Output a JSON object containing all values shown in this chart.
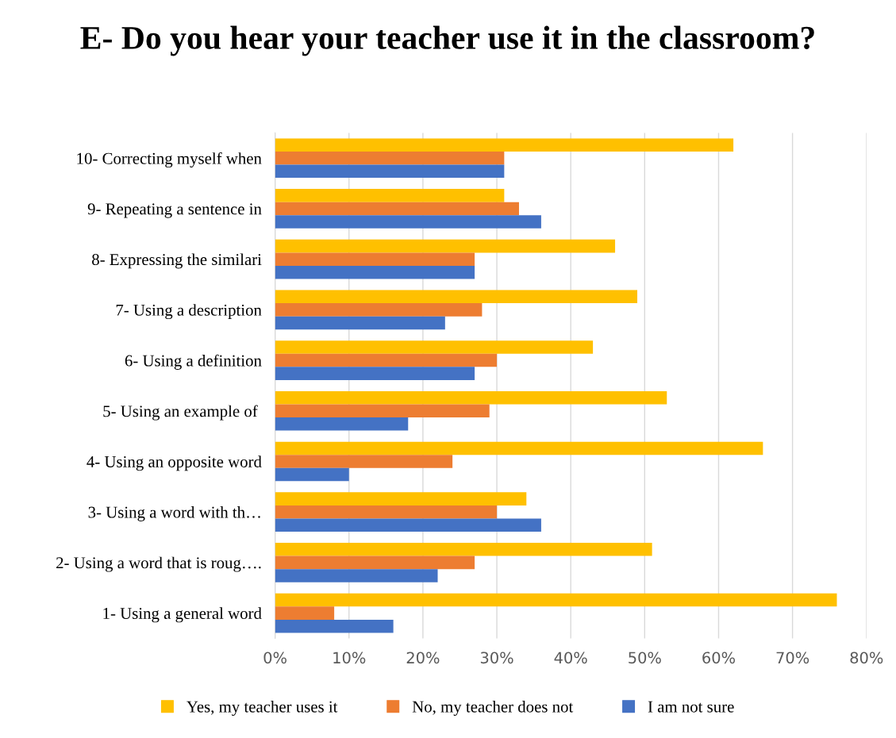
{
  "chart_data": {
    "type": "bar",
    "orientation": "horizontal",
    "title": "E- Do you hear your teacher use it in the classroom?",
    "categories": [
      "10- Correcting myself when",
      "9- Repeating a sentence in",
      "8- Expressing the similari",
      "7- Using a description",
      "6- Using a definition",
      "5- Using an example of ",
      "4- Using an opposite word",
      "3- Using a word with th…",
      "2- Using a word that is roug….",
      "1- Using a general word"
    ],
    "series": [
      {
        "name": "Yes, my teacher uses it",
        "color": "#ffc000",
        "values": [
          62,
          31,
          46,
          49,
          43,
          53,
          66,
          34,
          51,
          76
        ]
      },
      {
        "name": "No, my teacher does not",
        "color": "#ed7d31",
        "values": [
          31,
          33,
          27,
          28,
          30,
          29,
          24,
          30,
          27,
          8
        ]
      },
      {
        "name": "I am not sure",
        "color": "#4472c4",
        "values": [
          31,
          36,
          27,
          23,
          27,
          18,
          10,
          36,
          22,
          16
        ]
      }
    ],
    "xlim": [
      0,
      80
    ],
    "xticks": [
      {
        "value": 0,
        "label": "0%"
      },
      {
        "value": 10,
        "label": "10%"
      },
      {
        "value": 20,
        "label": "20%"
      },
      {
        "value": 30,
        "label": "30%"
      },
      {
        "value": 40,
        "label": "40%"
      },
      {
        "value": 50,
        "label": "50%"
      },
      {
        "value": 60,
        "label": "60%"
      },
      {
        "value": 70,
        "label": "70%"
      },
      {
        "value": 80,
        "label": "80%"
      }
    ],
    "grid": "x",
    "legend": "bottom"
  }
}
